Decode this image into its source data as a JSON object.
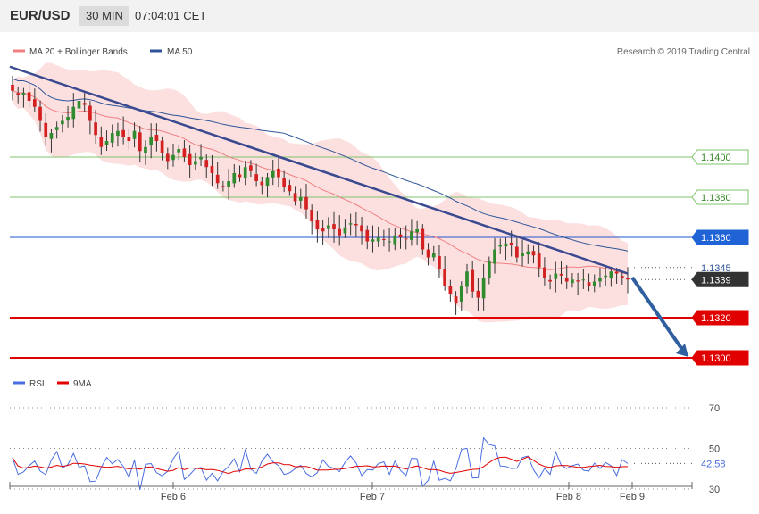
{
  "header": {
    "symbol": "EUR/USD",
    "timeframe": "30 MIN",
    "time": "07:04:01 CET"
  },
  "legend": {
    "items": [
      {
        "name": "MA 20 + Bollinger Bands",
        "color": "#f08080"
      },
      {
        "name": "MA 50",
        "color": "#2f5597"
      }
    ],
    "credit": "Research © 2019 Trading Central"
  },
  "colors": {
    "bullish": "#2e8b2e",
    "bearish": "#d42020",
    "support": "#e00000",
    "resistance": "#7cc46a",
    "current": "#333333",
    "trend": "#3a4a90",
    "forecast_arrow": "#2f5f9f"
  },
  "chart_data": [
    {
      "type": "candlestick",
      "title": "EUR/USD 30 MIN",
      "x_ticks": [
        "Feb 6",
        "Feb 7",
        "Feb 8",
        "Feb 9"
      ],
      "ylim": [
        1.1295,
        1.147
      ],
      "price_levels": [
        {
          "label": "1.1400",
          "value": 1.14,
          "kind": "resistance"
        },
        {
          "label": "1.1380",
          "value": 1.138,
          "kind": "resistance"
        },
        {
          "label": "1.1360",
          "value": 1.136,
          "kind": "pivot"
        },
        {
          "label": "1.1345",
          "value": 1.1345,
          "kind": "ma50"
        },
        {
          "label": "1.1339",
          "value": 1.1339,
          "kind": "last"
        },
        {
          "label": "1.1320",
          "value": 1.132,
          "kind": "support"
        },
        {
          "label": "1.1300",
          "value": 1.13,
          "kind": "support"
        }
      ],
      "trendline": {
        "from_value": 1.1445,
        "to_value": 1.1342
      },
      "forecast_arrow": {
        "from_value": 1.134,
        "to_value": 1.13
      },
      "close_path": [
        1.1433,
        1.1431,
        1.1432,
        1.1428,
        1.1425,
        1.1418,
        1.141,
        1.1412,
        1.1415,
        1.1418,
        1.142,
        1.1425,
        1.1428,
        1.1426,
        1.1418,
        1.1411,
        1.1405,
        1.1408,
        1.1412,
        1.1413,
        1.141,
        1.1408,
        1.1413,
        1.1403,
        1.1405,
        1.141,
        1.1408,
        1.1402,
        1.1398,
        1.1401,
        1.1404,
        1.14,
        1.1396,
        1.1398,
        1.14,
        1.1395,
        1.1392,
        1.1387,
        1.1385,
        1.1388,
        1.1392,
        1.139,
        1.1395,
        1.1393,
        1.1388,
        1.1386,
        1.139,
        1.1393,
        1.139,
        1.1385,
        1.1383,
        1.1378,
        1.138,
        1.1374,
        1.1368,
        1.1364,
        1.1363,
        1.1366,
        1.1364,
        1.1361,
        1.1365,
        1.1367,
        1.1366,
        1.1363,
        1.1358,
        1.1359,
        1.136,
        1.1359,
        1.1358,
        1.1361,
        1.136,
        1.1359,
        1.1363,
        1.1364,
        1.1354,
        1.135,
        1.1352,
        1.1344,
        1.1336,
        1.1332,
        1.1327,
        1.1336,
        1.1343,
        1.1333,
        1.133,
        1.134,
        1.1348,
        1.1354,
        1.1356,
        1.1357,
        1.1356,
        1.135,
        1.1352,
        1.1353,
        1.1351,
        1.1345,
        1.134,
        1.1338,
        1.1342,
        1.1341,
        1.1338,
        1.1339,
        1.1338,
        1.1339,
        1.1336,
        1.1338,
        1.134,
        1.1341,
        1.1343,
        1.1342,
        1.134,
        1.1339
      ]
    },
    {
      "type": "line",
      "title": "RSI",
      "series": [
        {
          "name": "RSI",
          "color": "#4a6ee0",
          "last_value": 42.58
        },
        {
          "name": "9MA",
          "color": "#e00000"
        }
      ],
      "y_ticks": [
        "70",
        "50",
        "30"
      ],
      "ylim": [
        20,
        80
      ],
      "last_label": "42.58"
    }
  ]
}
